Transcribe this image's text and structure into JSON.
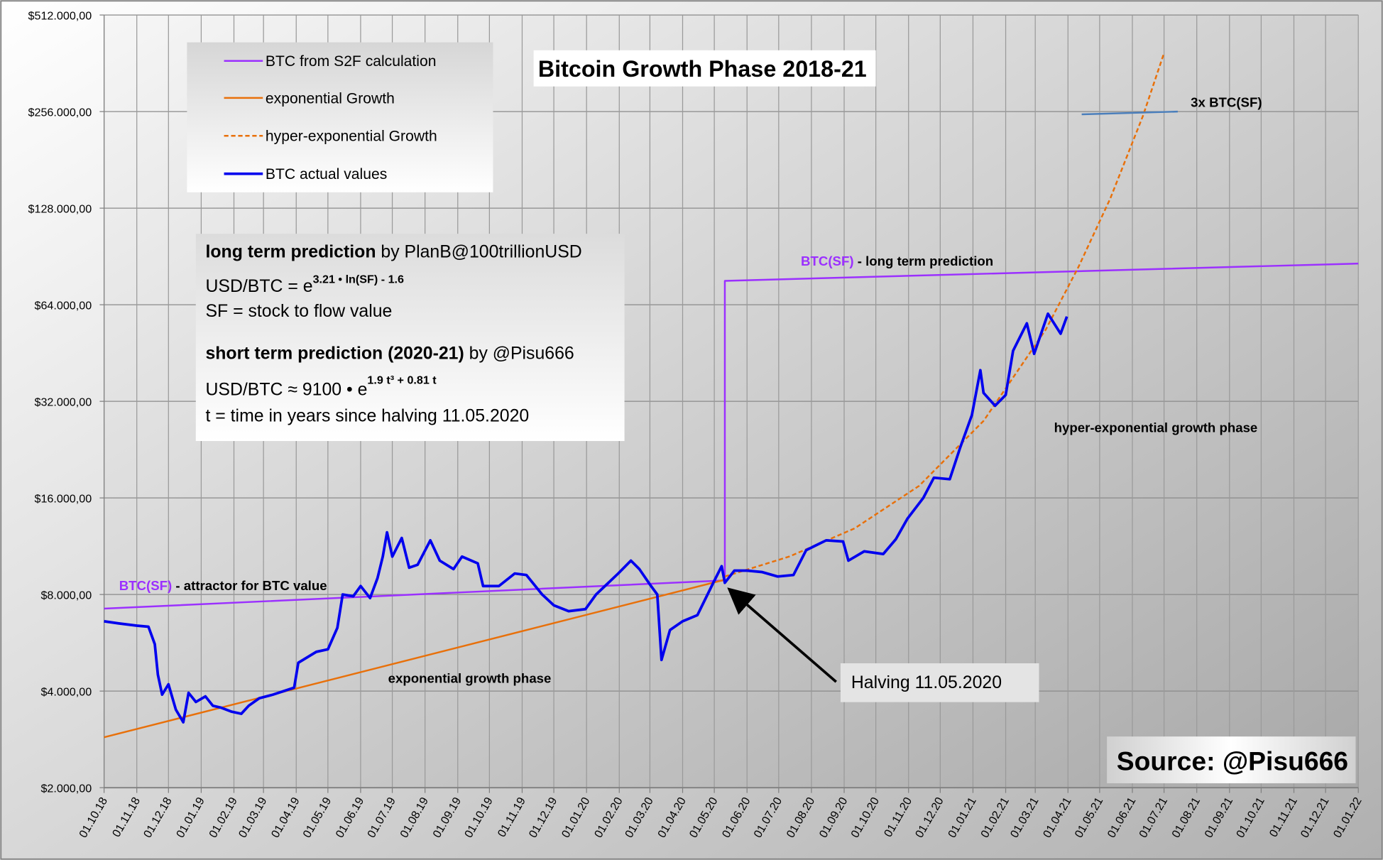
{
  "chart_data": {
    "type": "line",
    "title": "Bitcoin Growth Phase 2018-21",
    "y_scale": "log2",
    "ylim": [
      2000,
      512000
    ],
    "xlim": [
      "2018-10-01",
      "2022-01-01"
    ],
    "y_ticks": [
      "$2.000,00",
      "$4.000,00",
      "$8.000,00",
      "$16.000,00",
      "$32.000,00",
      "$64.000,00",
      "$128.000,00",
      "$256.000,00",
      "$512.000,00"
    ],
    "x_ticks": [
      "01.10.18",
      "01.11.18",
      "01.12.18",
      "01.01.19",
      "01.02.19",
      "01.03.19",
      "01.04.19",
      "01.05.19",
      "01.06.19",
      "01.07.19",
      "01.08.19",
      "01.09.19",
      "01.10.19",
      "01.11.19",
      "01.12.19",
      "01.01.20",
      "01.02.20",
      "01.03.20",
      "01.04.20",
      "01.05.20",
      "01.06.20",
      "01.07.20",
      "01.08.20",
      "01.09.20",
      "01.10.20",
      "01.11.20",
      "01.12.20",
      "01.01.21",
      "01.02.21",
      "01.03.21",
      "01.04.21",
      "01.05.21",
      "01.06.21",
      "01.07.21",
      "01.08.21",
      "01.09.21",
      "01.10.21",
      "01.11.21",
      "01.12.21",
      "01.01.22"
    ],
    "grid": true,
    "legend_placement": "top-left",
    "series": [
      {
        "name": "BTC from S2F calculation",
        "color": "#9b30ff",
        "style": "solid",
        "points": [
          [
            "2018-10-01",
            7230
          ],
          [
            "2020-05-11",
            8850
          ],
          [
            "2020-05-11",
            76000
          ],
          [
            "2022-01-01",
            86000
          ]
        ]
      },
      {
        "name": "exponential Growth",
        "color": "#e8700a",
        "style": "solid",
        "points": [
          [
            "2018-10-01",
            2870
          ],
          [
            "2020-05-11",
            8900
          ]
        ]
      },
      {
        "name": "hyper-exponential Growth",
        "color": "#e8700a",
        "style": "dashed",
        "points": [
          [
            "2020-05-11",
            9100
          ],
          [
            "2020-07-11",
            10500
          ],
          [
            "2020-09-11",
            12860
          ],
          [
            "2020-11-11",
            17450
          ],
          [
            "2021-01-11",
            27800
          ],
          [
            "2021-03-11",
            53560
          ],
          [
            "2021-04-11",
            84000
          ],
          [
            "2021-05-11",
            137000
          ],
          [
            "2021-06-11",
            248000
          ],
          [
            "2021-07-01",
            390000
          ]
        ]
      },
      {
        "name": "BTC actual values",
        "color": "#0000ee",
        "style": "solid",
        "points": [
          [
            "2018-10-01",
            6600
          ],
          [
            "2018-10-15",
            6500
          ],
          [
            "2018-11-01",
            6400
          ],
          [
            "2018-11-12",
            6350
          ],
          [
            "2018-11-18",
            5600
          ],
          [
            "2018-11-21",
            4500
          ],
          [
            "2018-11-25",
            3900
          ],
          [
            "2018-12-01",
            4200
          ],
          [
            "2018-12-08",
            3500
          ],
          [
            "2018-12-15",
            3200
          ],
          [
            "2018-12-20",
            3950
          ],
          [
            "2018-12-27",
            3700
          ],
          [
            "2019-01-05",
            3850
          ],
          [
            "2019-01-12",
            3600
          ],
          [
            "2019-01-20",
            3550
          ],
          [
            "2019-01-30",
            3450
          ],
          [
            "2019-02-08",
            3400
          ],
          [
            "2019-02-15",
            3600
          ],
          [
            "2019-02-25",
            3800
          ],
          [
            "2019-03-10",
            3900
          ],
          [
            "2019-03-30",
            4100
          ],
          [
            "2019-04-03",
            4900
          ],
          [
            "2019-04-20",
            5300
          ],
          [
            "2019-05-01",
            5400
          ],
          [
            "2019-05-10",
            6300
          ],
          [
            "2019-05-15",
            8000
          ],
          [
            "2019-05-25",
            7900
          ],
          [
            "2019-06-01",
            8500
          ],
          [
            "2019-06-10",
            7800
          ],
          [
            "2019-06-17",
            9000
          ],
          [
            "2019-06-22",
            10500
          ],
          [
            "2019-06-26",
            12500
          ],
          [
            "2019-07-01",
            10500
          ],
          [
            "2019-07-10",
            12000
          ],
          [
            "2019-07-17",
            9700
          ],
          [
            "2019-07-25",
            9900
          ],
          [
            "2019-08-06",
            11800
          ],
          [
            "2019-08-15",
            10200
          ],
          [
            "2019-08-28",
            9600
          ],
          [
            "2019-09-05",
            10500
          ],
          [
            "2019-09-20",
            10000
          ],
          [
            "2019-09-25",
            8500
          ],
          [
            "2019-10-10",
            8500
          ],
          [
            "2019-10-25",
            9300
          ],
          [
            "2019-11-05",
            9200
          ],
          [
            "2019-11-20",
            8000
          ],
          [
            "2019-12-01",
            7400
          ],
          [
            "2019-12-15",
            7100
          ],
          [
            "2019-12-31",
            7200
          ],
          [
            "2020-01-10",
            8000
          ],
          [
            "2020-01-20",
            8600
          ],
          [
            "2020-01-31",
            9300
          ],
          [
            "2020-02-12",
            10200
          ],
          [
            "2020-02-20",
            9600
          ],
          [
            "2020-03-01",
            8600
          ],
          [
            "2020-03-08",
            8000
          ],
          [
            "2020-03-12",
            5000
          ],
          [
            "2020-03-20",
            6200
          ],
          [
            "2020-04-01",
            6600
          ],
          [
            "2020-04-15",
            6900
          ],
          [
            "2020-04-30",
            8700
          ],
          [
            "2020-05-08",
            9800
          ],
          [
            "2020-05-11",
            8700
          ],
          [
            "2020-05-20",
            9500
          ],
          [
            "2020-06-01",
            9500
          ],
          [
            "2020-06-15",
            9400
          ],
          [
            "2020-06-30",
            9100
          ],
          [
            "2020-07-15",
            9200
          ],
          [
            "2020-07-27",
            11000
          ],
          [
            "2020-08-15",
            11800
          ],
          [
            "2020-08-31",
            11700
          ],
          [
            "2020-09-05",
            10200
          ],
          [
            "2020-09-20",
            10900
          ],
          [
            "2020-10-08",
            10700
          ],
          [
            "2020-10-20",
            11900
          ],
          [
            "2020-10-31",
            13800
          ],
          [
            "2020-11-15",
            16000
          ],
          [
            "2020-11-25",
            18500
          ],
          [
            "2020-12-10",
            18300
          ],
          [
            "2020-12-20",
            23000
          ],
          [
            "2020-12-31",
            29000
          ],
          [
            "2021-01-08",
            40000
          ],
          [
            "2021-01-11",
            34000
          ],
          [
            "2021-01-22",
            31000
          ],
          [
            "2021-02-01",
            33500
          ],
          [
            "2021-02-08",
            46000
          ],
          [
            "2021-02-21",
            56000
          ],
          [
            "2021-02-28",
            45000
          ],
          [
            "2021-03-13",
            60000
          ],
          [
            "2021-03-25",
            52000
          ],
          [
            "2021-03-31",
            58800
          ]
        ]
      },
      {
        "name": "3x BTC(SF)",
        "color": "#4a7ebb",
        "style": "solid",
        "points": [
          [
            "2021-04-14",
            251000
          ],
          [
            "2021-07-14",
            256000
          ]
        ]
      }
    ],
    "annotations": {
      "long_term": {
        "label": "BTC(SF)",
        "text": "  -  long term prediction"
      },
      "attractor": {
        "label": "BTC(SF)",
        "text": " - attractor for BTC value"
      },
      "hyper_phase": "hyper-exponential growth phase",
      "exp_phase": "exponential growth phase",
      "three_x": "3x BTC(SF)",
      "halving": "Halving 11.05.2020",
      "source": "Source: @Pisu666"
    },
    "info_box": {
      "l1_bold": "long term prediction",
      "l1_rest": " by PlanB@100trillionUSD",
      "l2_base": "USD/BTC = e",
      "l2_sup": "3.21 • ln(SF) - 1.6",
      "l3": "SF = stock to flow value",
      "l4_bold": "short term prediction (2020-21)",
      "l4_rest": " by @Pisu666",
      "l5_base": "USD/BTC  ≈ 9100 • e",
      "l5_sup": "1.9 t³ + 0.81 t",
      "l6": "t = time in years since halving 11.05.2020"
    }
  }
}
